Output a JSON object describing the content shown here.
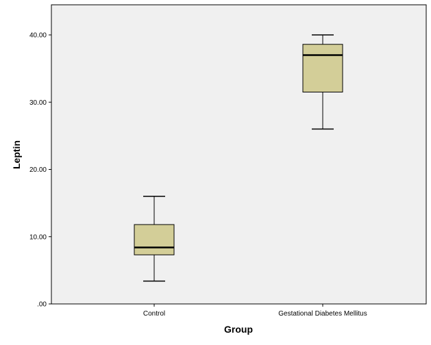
{
  "chart_data": {
    "type": "boxplot",
    "title": "",
    "xlabel": "Group",
    "ylabel": "Leptin",
    "ylim": [
      0,
      45
    ],
    "y_ticks": [
      {
        "value": 0,
        "label": ".00"
      },
      {
        "value": 10,
        "label": "10.00"
      },
      {
        "value": 20,
        "label": "20.00"
      },
      {
        "value": 30,
        "label": "30.00"
      },
      {
        "value": 40,
        "label": "40.00"
      }
    ],
    "categories": [
      "Control",
      "Gestational Diabetes Mellitus"
    ],
    "boxes": [
      {
        "category": "Control",
        "min": 3.4,
        "q1": 7.3,
        "median": 8.4,
        "q3": 11.8,
        "max": 16.0
      },
      {
        "category": "Gestational Diabetes Mellitus",
        "min": 26.0,
        "q1": 31.5,
        "median": 37.0,
        "q3": 38.6,
        "max": 40.0
      }
    ],
    "grid": false,
    "colors": {
      "plot_background": "#f0f0f0",
      "box_fill": "#d3ce98",
      "line": "#000000",
      "page_background": "#ffffff"
    }
  }
}
